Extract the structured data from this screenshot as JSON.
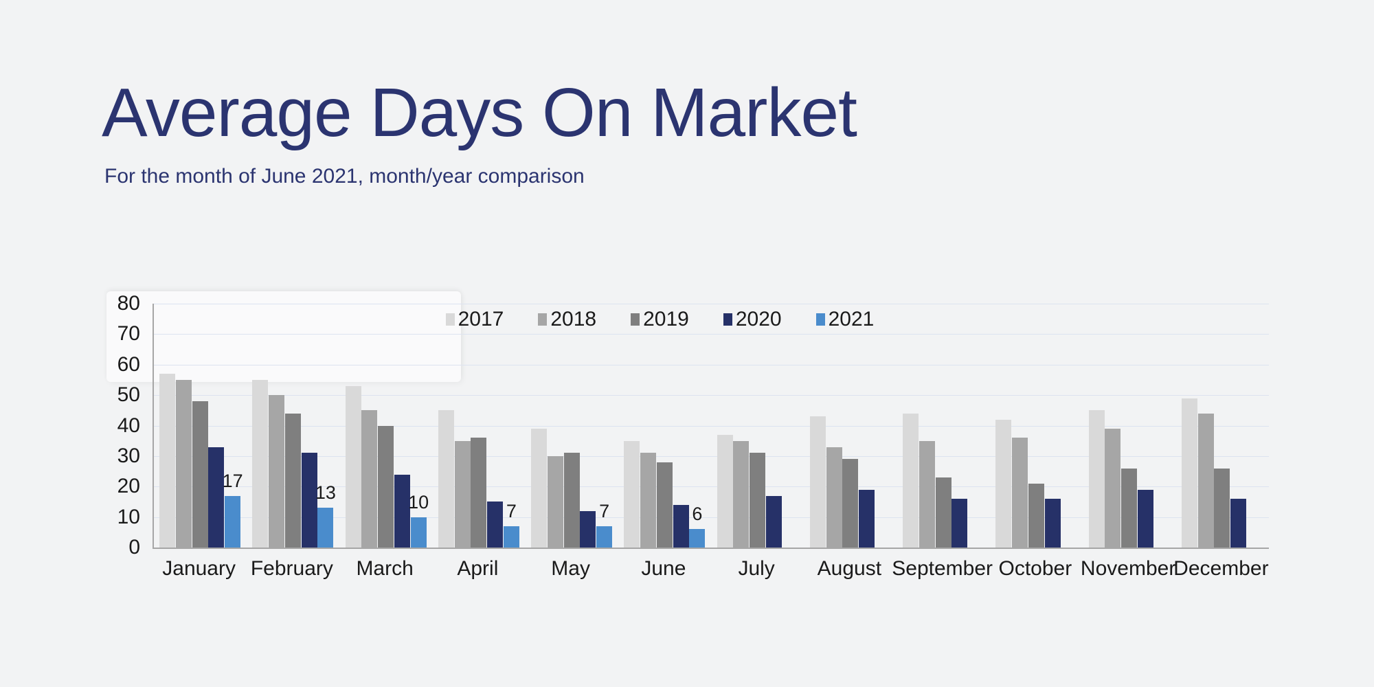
{
  "page": {
    "background": "#f2f3f4"
  },
  "header": {
    "title": "Average Days On Market",
    "subtitle": "For the month of June 2021, month/year comparison",
    "title_color": "#2b3470"
  },
  "chart_data": {
    "type": "bar",
    "title": "Average Days On Market",
    "subtitle": "For the month of June 2021, month/year comparison",
    "categories": [
      "January",
      "February",
      "March",
      "April",
      "May",
      "June",
      "July",
      "August",
      "September",
      "October",
      "November",
      "December"
    ],
    "series": [
      {
        "name": "2017",
        "color": "#d9d9d9",
        "values": [
          57,
          55,
          53,
          45,
          39,
          35,
          37,
          43,
          44,
          42,
          45,
          49
        ]
      },
      {
        "name": "2018",
        "color": "#a6a6a6",
        "values": [
          55,
          50,
          45,
          35,
          30,
          31,
          35,
          33,
          35,
          36,
          39,
          44
        ]
      },
      {
        "name": "2019",
        "color": "#7f7f7f",
        "values": [
          48,
          44,
          40,
          36,
          31,
          28,
          31,
          29,
          23,
          21,
          26,
          26
        ]
      },
      {
        "name": "2020",
        "color": "#263168",
        "values": [
          33,
          31,
          24,
          15,
          12,
          14,
          17,
          19,
          16,
          16,
          19,
          16
        ]
      },
      {
        "name": "2021",
        "color": "#4a8ccc",
        "values": [
          17,
          13,
          10,
          7,
          7,
          6,
          null,
          null,
          null,
          null,
          null,
          null
        ]
      }
    ],
    "data_labels": {
      "series": "2021",
      "values": [
        17,
        13,
        10,
        7,
        7,
        6
      ]
    },
    "xlabel": "",
    "ylabel": "",
    "ylim": [
      0,
      80
    ],
    "ytick_step": 10,
    "grid": true,
    "gridline_color": "#dce3f0",
    "axis_line_color": "#a6a6a6",
    "legend_position": "top-center",
    "legend_entries": [
      "2017",
      "2018",
      "2019",
      "2020",
      "2021"
    ]
  }
}
